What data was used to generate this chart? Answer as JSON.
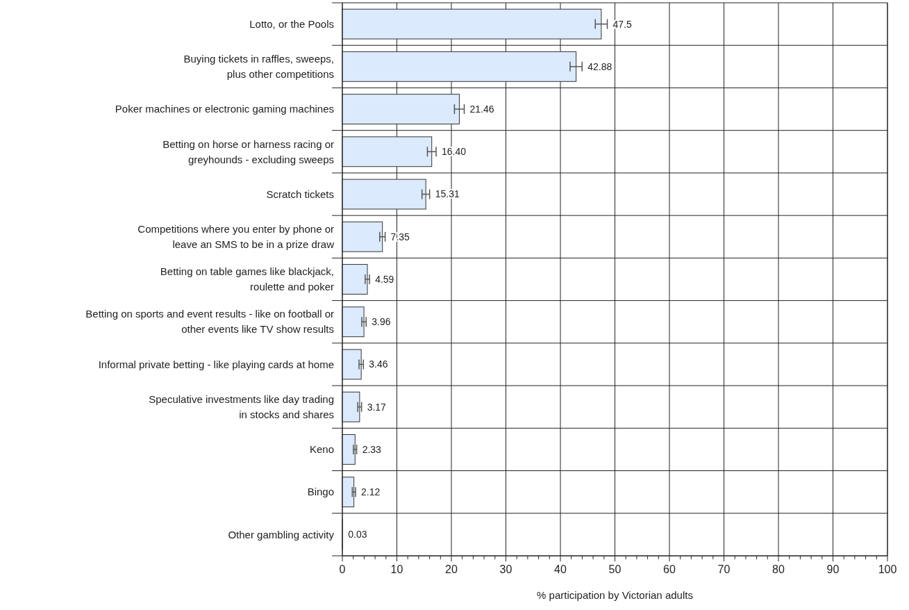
{
  "chart_data": {
    "type": "bar",
    "orientation": "horizontal",
    "xlabel": "% participation by Victorian adults",
    "categories": [
      "Lotto, or the Pools",
      "Buying tickets in raffles, sweeps,\nplus other competitions",
      "Poker machines or electronic gaming machines",
      "Betting on horse or harness racing or\ngreyhounds - excluding sweeps",
      "Scratch tickets",
      "Competitions where you enter by phone or\nleave an SMS to be in a prize draw",
      "Betting on table games like blackjack,\nroulette and poker",
      "Betting on sports and event results - like on football or\nother events like TV show results",
      "Informal private betting - like playing cards at home",
      "Speculative investments like day trading\nin stocks and shares",
      "Keno",
      "Bingo",
      "Other gambling activity"
    ],
    "values": [
      47.5,
      42.88,
      21.46,
      16.4,
      15.31,
      7.35,
      4.59,
      3.96,
      3.46,
      3.17,
      2.33,
      2.12,
      0.03
    ],
    "value_labels": [
      "47.5",
      "42.88",
      "21.46",
      "16.40",
      "15.31",
      "7.35",
      "4.59",
      "3.96",
      "3.46",
      "3.17",
      "2.33",
      "2.12",
      "0.03"
    ],
    "errors": [
      1.1,
      1.1,
      0.9,
      0.8,
      0.7,
      0.5,
      0.4,
      0.4,
      0.4,
      0.35,
      0.3,
      0.3,
      null
    ],
    "color": "#dbeafd",
    "xlim": [
      0,
      100
    ],
    "xticks": [
      0,
      {
        "value": 2,
        "label": null
      },
      {
        "value": 4,
        "label": null
      },
      {
        "value": 6,
        "label": null
      },
      {
        "value": 8,
        "label": null
      },
      10,
      {
        "value": 12,
        "label": null
      },
      {
        "value": 14,
        "label": null
      },
      {
        "value": 16,
        "label": null
      },
      {
        "value": 18,
        "label": null
      },
      20,
      {
        "value": 22,
        "label": null
      },
      {
        "value": 24,
        "label": null
      },
      {
        "value": 26,
        "label": null
      },
      {
        "value": 28,
        "label": null
      },
      30,
      {
        "value": 32,
        "label": null
      },
      {
        "value": 34,
        "label": null
      },
      {
        "value": 36,
        "label": null
      },
      {
        "value": 38,
        "label": null
      },
      40,
      {
        "value": 42,
        "label": null
      },
      {
        "value": 44,
        "label": null
      },
      {
        "value": 46,
        "label": null
      },
      {
        "value": 48,
        "label": null
      },
      50,
      {
        "value": 52,
        "label": null
      },
      {
        "value": 54,
        "label": null
      },
      {
        "value": 56,
        "label": null
      },
      {
        "value": 58,
        "label": null
      },
      60,
      {
        "value": 62,
        "label": null
      },
      {
        "value": 64,
        "label": null
      },
      {
        "value": 66,
        "label": null
      },
      {
        "value": 68,
        "label": null
      },
      70,
      {
        "value": 72,
        "label": null
      },
      {
        "value": 74,
        "label": null
      },
      {
        "value": 76,
        "label": null
      },
      {
        "value": 78,
        "label": null
      },
      80,
      {
        "value": 82,
        "label": null
      },
      {
        "value": 84,
        "label": null
      },
      {
        "value": 86,
        "label": null
      },
      {
        "value": 88,
        "label": null
      },
      90,
      {
        "value": 92,
        "label": null
      },
      {
        "value": 94,
        "label": null
      },
      {
        "value": 96,
        "label": null
      },
      {
        "value": 98,
        "label": null
      },
      100
    ],
    "grid": true
  }
}
